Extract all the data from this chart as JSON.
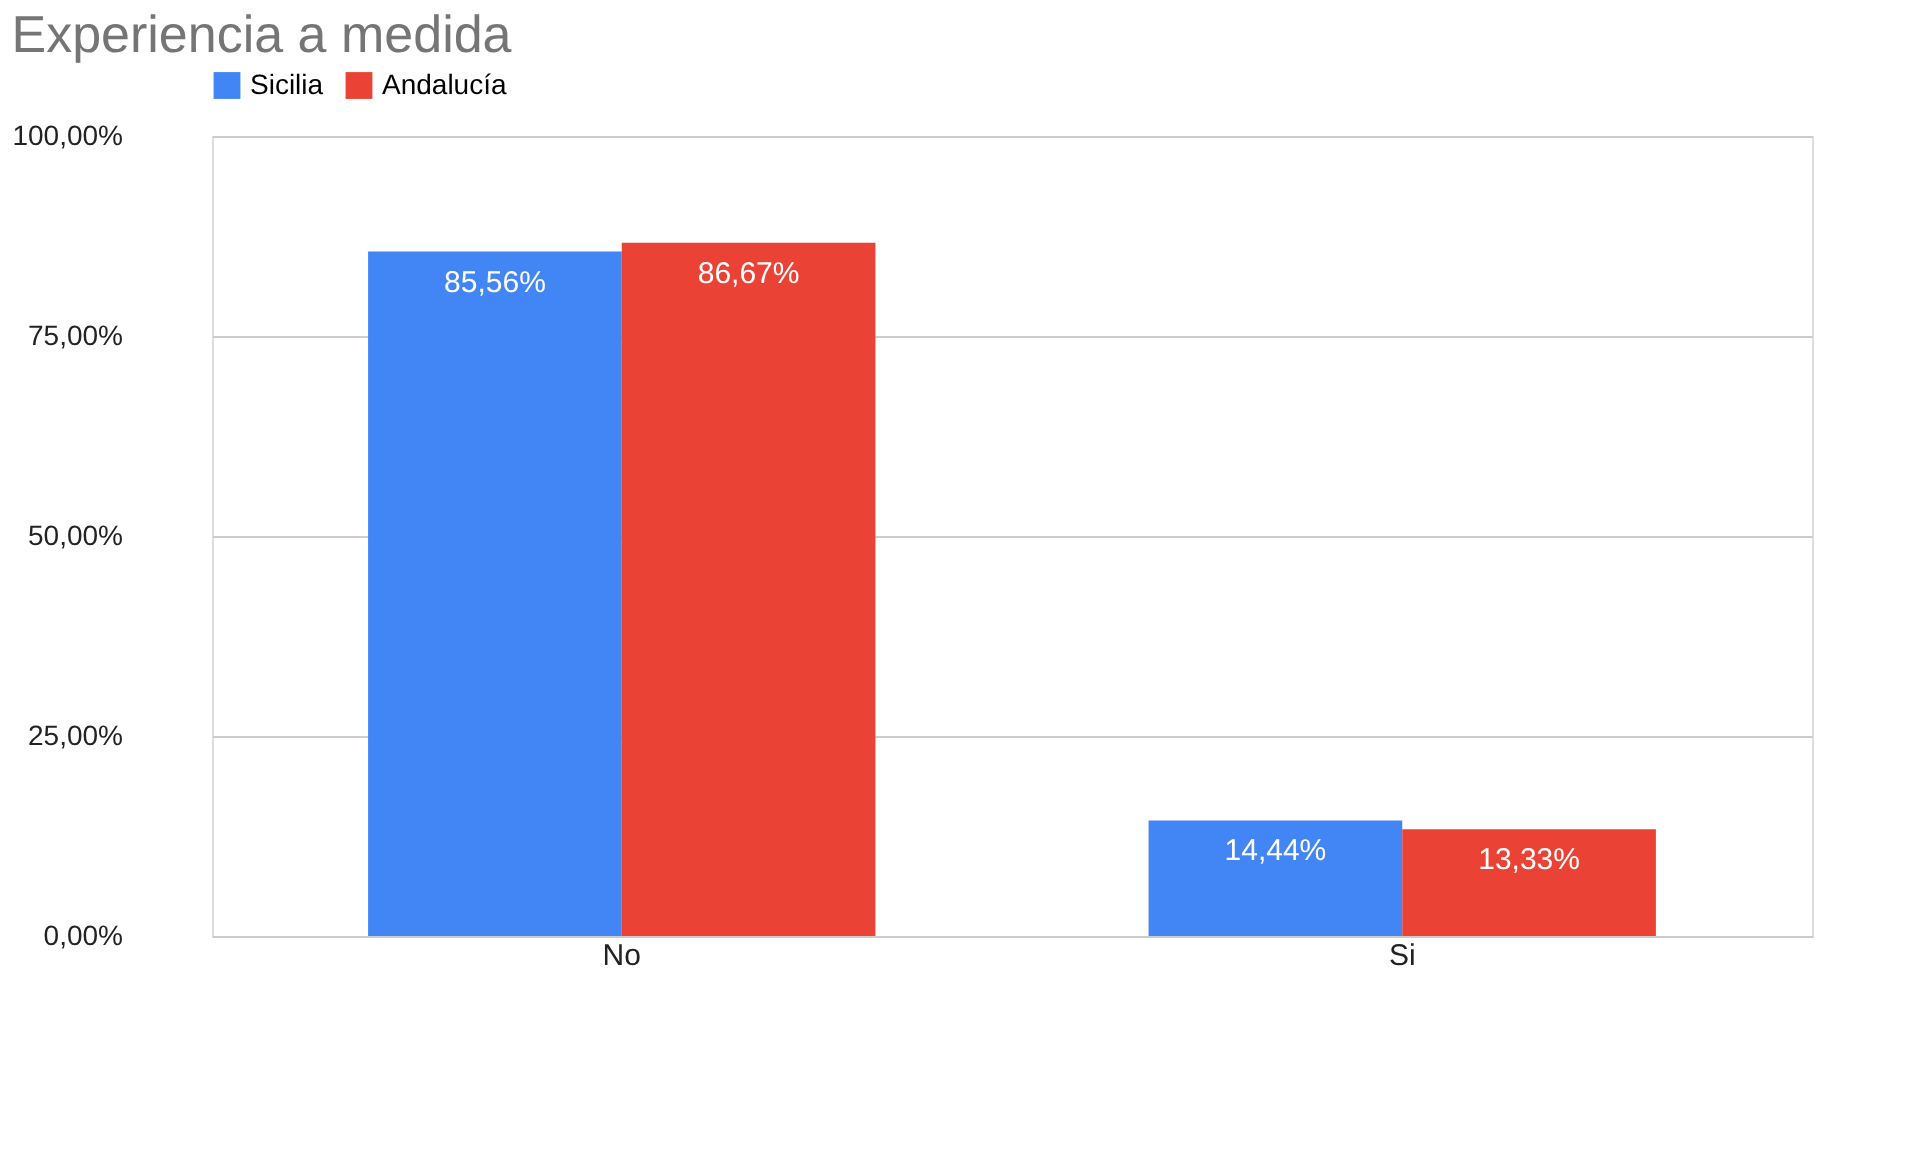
{
  "chart_data": {
    "type": "bar",
    "title": "Experiencia a medida",
    "categories": [
      "No",
      "Si"
    ],
    "series": [
      {
        "name": "Sicilia",
        "color": "#4285f4",
        "values": [
          85.56,
          14.44
        ],
        "value_labels": [
          "85,56%",
          "14,44%"
        ]
      },
      {
        "name": "Andalucía",
        "color": "#ea4335",
        "values": [
          86.67,
          13.33
        ],
        "value_labels": [
          "86,67%",
          "13,33%"
        ]
      }
    ],
    "ylim": [
      0,
      100
    ],
    "yticks": [
      {
        "value": 0,
        "label": "0,00%"
      },
      {
        "value": 25,
        "label": "25,00%"
      },
      {
        "value": 50,
        "label": "50,00%"
      },
      {
        "value": 75,
        "label": "75,00%"
      },
      {
        "value": 100,
        "label": "100,00%"
      }
    ],
    "grid": "y",
    "legend": "top"
  }
}
